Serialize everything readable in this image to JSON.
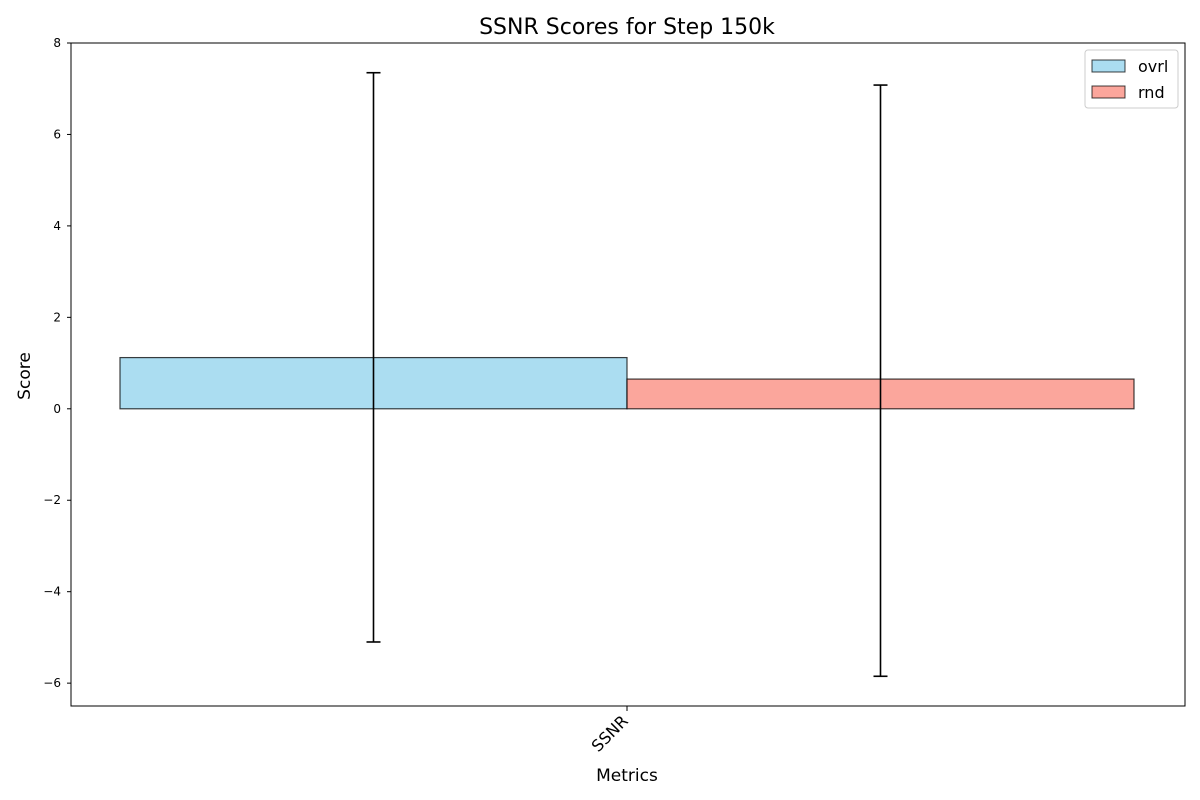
{
  "chart_data": {
    "type": "bar",
    "title": "SSNR Scores for Step 150k",
    "xlabel": "Metrics",
    "ylabel": "Score",
    "categories": [
      "SSNR"
    ],
    "ylim": [
      -6.5,
      8
    ],
    "yticks": [
      -6,
      -4,
      -2,
      0,
      2,
      4,
      6,
      8
    ],
    "ytick_labels": [
      "−6",
      "−4",
      "−2",
      "0",
      "2",
      "4",
      "6",
      "8"
    ],
    "legend_location": "top-right",
    "grid": false,
    "series": [
      {
        "name": "ovrl",
        "values": [
          1.12
        ],
        "error_low": [
          -5.1
        ],
        "error_high": [
          7.35
        ],
        "color": "#87ceeb"
      },
      {
        "name": "rnd",
        "values": [
          0.65
        ],
        "error_low": [
          -5.85
        ],
        "error_high": [
          7.08
        ],
        "color": "#fa8072"
      }
    ]
  }
}
